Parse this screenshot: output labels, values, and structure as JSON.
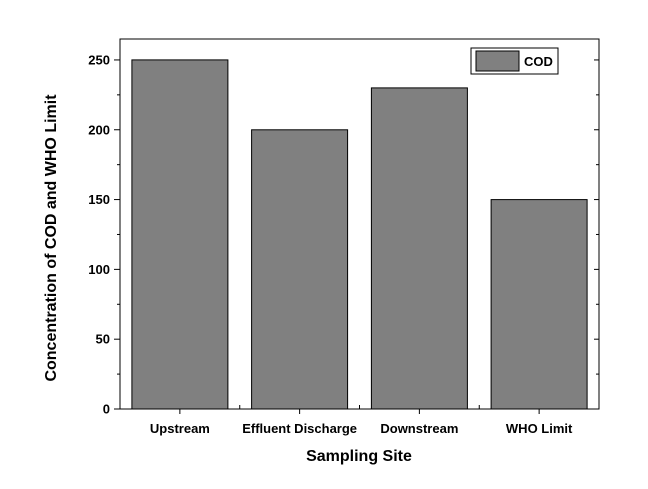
{
  "chart_data": {
    "type": "bar",
    "categories": [
      "Upstream",
      "Effluent Discharge",
      "Downstream",
      "WHO Limit"
    ],
    "series": [
      {
        "name": "COD",
        "values": [
          250,
          200,
          230,
          150
        ]
      }
    ],
    "xlabel": "Sampling Site",
    "ylabel": "Concentration of COD and WHO Limit",
    "ylim": [
      0,
      265
    ],
    "yticks": [
      0,
      50,
      100,
      150,
      200,
      250
    ],
    "grid": false,
    "legend": "top-right",
    "colors": {
      "bar_fill": "#808080",
      "bar_stroke": "#000000",
      "axis": "#000000",
      "background": "#ffffff"
    }
  }
}
